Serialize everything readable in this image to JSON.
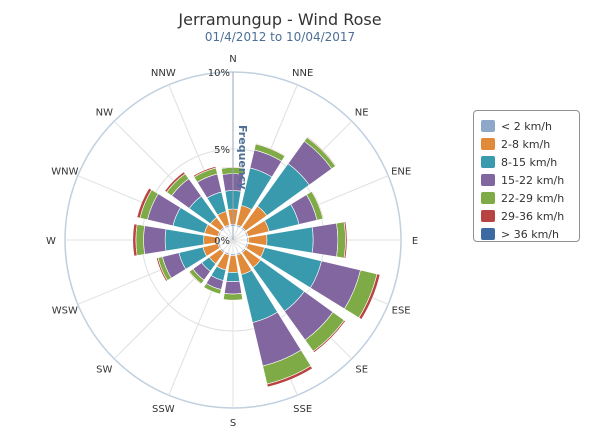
{
  "chart_data": {
    "type": "windrose",
    "title": "Jerramungup - Wind Rose",
    "subtitle": "01/4/2012 to 10/04/2017",
    "radial_label": "Frequency",
    "radial_ticks": [
      "0%",
      "5%",
      "10%"
    ],
    "rmax": 10,
    "directions": [
      "N",
      "NNE",
      "NE",
      "ENE",
      "E",
      "ESE",
      "SE",
      "SSE",
      "S",
      "SSW",
      "SW",
      "WSW",
      "W",
      "WNW",
      "NW",
      "NNW"
    ],
    "series": [
      {
        "name": "< 2 km/h",
        "color": "#8ea8c9",
        "values": [
          0.1,
          0.1,
          0.1,
          0.1,
          0.1,
          0.1,
          0.1,
          0.1,
          0.1,
          0.1,
          0.1,
          0.1,
          0.1,
          0.1,
          0.1,
          0.1
        ]
      },
      {
        "name": "2-8 km/h",
        "color": "#e08a3a",
        "values": [
          1.0,
          1.3,
          1.7,
          1.4,
          1.2,
          1.1,
          1.2,
          1.3,
          1.1,
          1.0,
          0.9,
          1.0,
          0.9,
          0.9,
          0.8,
          0.9
        ]
      },
      {
        "name": "8-15 km/h",
        "color": "#3a9aad",
        "values": [
          1.2,
          2.5,
          3.4,
          2.0,
          3.0,
          3.8,
          3.5,
          3.2,
          0.6,
          0.7,
          0.6,
          1.6,
          2.5,
          2.1,
          1.7,
          1.3
        ]
      },
      {
        "name": "15-22 km/h",
        "color": "#8266a0",
        "values": [
          1.1,
          1.2,
          1.8,
          1.2,
          1.6,
          2.6,
          2.3,
          2.9,
          0.8,
          0.6,
          0.7,
          1.1,
          1.4,
          1.7,
          1.4,
          1.2
        ]
      },
      {
        "name": "22-29 km/h",
        "color": "#7fab46",
        "values": [
          0.4,
          0.4,
          0.3,
          0.4,
          0.5,
          1.1,
          0.9,
          1.2,
          0.4,
          0.3,
          0.3,
          0.3,
          0.5,
          0.5,
          0.4,
          0.4
        ]
      },
      {
        "name": "29-36 km/h",
        "color": "#b84340",
        "values": [
          0.05,
          0.05,
          0.05,
          0.05,
          0.1,
          0.2,
          0.1,
          0.2,
          0.0,
          0.0,
          0.05,
          0.1,
          0.2,
          0.2,
          0.15,
          0.1
        ]
      },
      {
        "name": "> 36 km/h",
        "color": "#3c6aa1",
        "values": [
          0,
          0,
          0,
          0,
          0,
          0,
          0,
          0,
          0,
          0,
          0,
          0,
          0,
          0,
          0,
          0
        ]
      }
    ]
  }
}
